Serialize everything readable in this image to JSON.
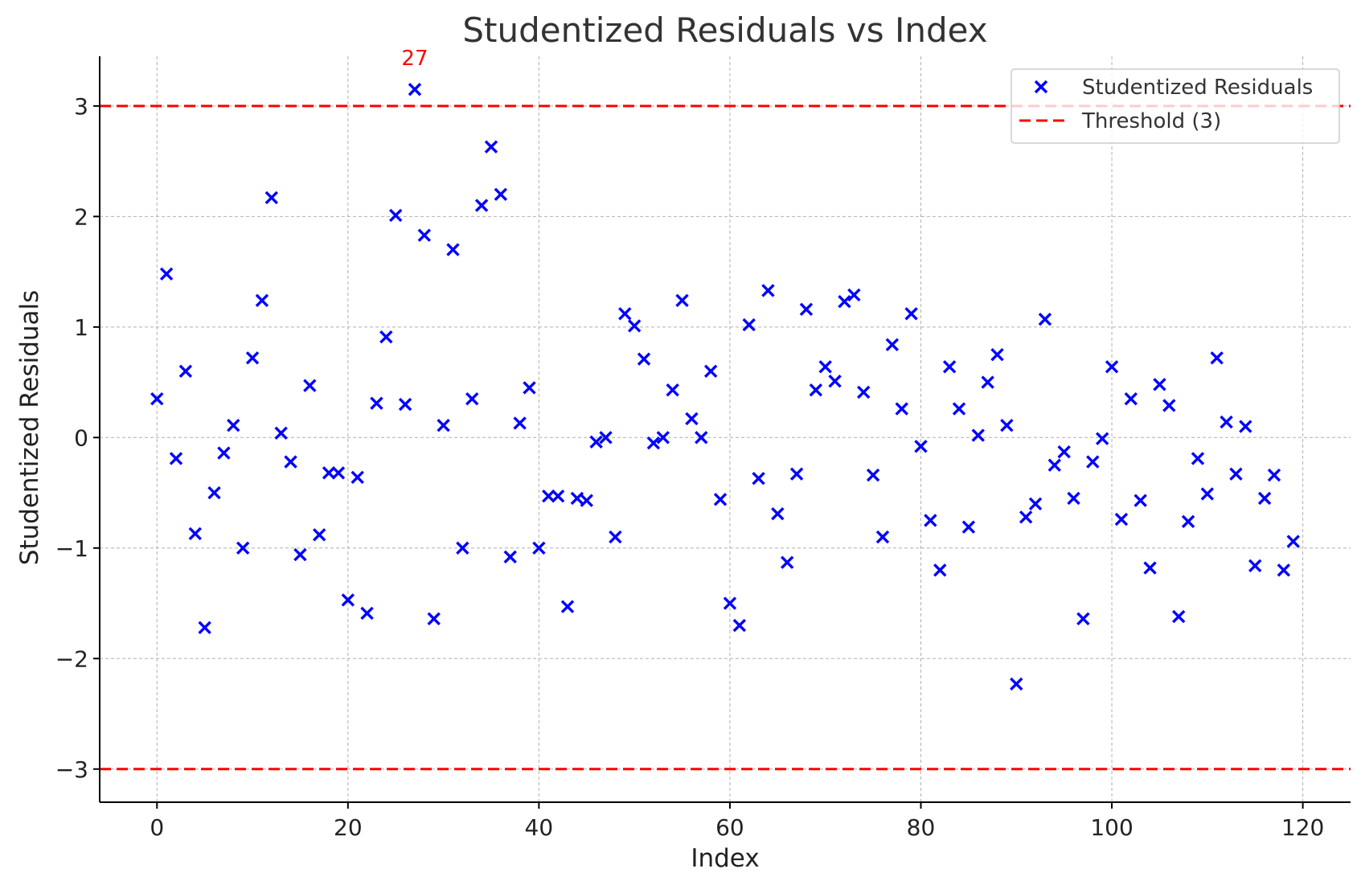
{
  "chart_data": {
    "type": "scatter",
    "title": "Studentized Residuals vs Index",
    "xlabel": "Index",
    "ylabel": "Studentized Residuals",
    "xlim": [
      -6,
      125
    ],
    "ylim": [
      -3.3,
      3.45
    ],
    "xticks": [
      0,
      20,
      40,
      60,
      80,
      100,
      120
    ],
    "yticks": [
      3,
      2,
      1,
      0,
      -1,
      -2,
      -3
    ],
    "ytick_labels": [
      "3",
      "2",
      "1",
      "0",
      "−1",
      "−2",
      "−3"
    ],
    "grid": true,
    "legend": {
      "position": "top-right",
      "entries": [
        "Studentized Residuals",
        "Threshold (3)"
      ]
    },
    "series": [
      {
        "name": "Studentized Residuals",
        "marker": "x",
        "color": "#0000ff",
        "x": [
          0,
          1,
          2,
          3,
          4,
          5,
          6,
          7,
          8,
          9,
          10,
          11,
          12,
          13,
          14,
          15,
          16,
          17,
          18,
          19,
          20,
          21,
          22,
          23,
          24,
          25,
          26,
          27,
          28,
          29,
          30,
          31,
          32,
          33,
          34,
          35,
          36,
          37,
          38,
          39,
          40,
          41,
          42,
          43,
          44,
          45,
          46,
          47,
          48,
          49,
          50,
          51,
          52,
          53,
          54,
          55,
          56,
          57,
          58,
          59,
          60,
          61,
          62,
          63,
          64,
          65,
          66,
          67,
          68,
          69,
          70,
          71,
          72,
          73,
          74,
          75,
          76,
          77,
          78,
          79,
          80,
          81,
          82,
          83,
          84,
          85,
          86,
          87,
          88,
          89,
          90,
          91,
          92,
          93,
          94,
          95,
          96,
          97,
          98,
          99,
          100,
          101,
          102,
          103,
          104,
          105,
          106,
          107,
          108,
          109,
          110,
          111,
          112,
          113,
          114,
          115,
          116,
          117,
          118,
          119
        ],
        "y": [
          0.35,
          1.48,
          -0.19,
          0.6,
          -0.87,
          -1.72,
          -0.5,
          -0.14,
          0.11,
          -1.0,
          0.72,
          1.24,
          2.17,
          0.04,
          -0.22,
          -1.06,
          0.47,
          -0.88,
          -0.32,
          -0.32,
          -1.47,
          -0.36,
          -1.59,
          0.31,
          0.91,
          2.01,
          0.3,
          3.15,
          1.83,
          -1.64,
          0.11,
          1.7,
          -1.0,
          0.35,
          2.1,
          2.63,
          2.2,
          -1.08,
          0.13,
          0.45,
          -1.0,
          -0.53,
          -0.53,
          -1.53,
          -0.55,
          -0.57,
          -0.04,
          0.0,
          -0.9,
          1.12,
          1.01,
          0.71,
          -0.05,
          0.0,
          0.43,
          1.24,
          0.17,
          0.0,
          0.6,
          -0.56,
          -1.5,
          -1.7,
          1.02,
          -0.37,
          1.33,
          -0.69,
          -1.13,
          -0.33,
          1.16,
          0.43,
          0.64,
          0.51,
          1.23,
          1.29,
          0.41,
          -0.34,
          -0.9,
          0.84,
          0.26,
          1.12,
          -0.08,
          -0.75,
          -1.2,
          0.64,
          0.26,
          -0.81,
          0.02,
          0.5,
          0.75,
          0.11,
          -2.23,
          -0.72,
          -0.6,
          1.07,
          -0.25,
          -0.13,
          -0.55,
          -1.64,
          -0.22,
          -0.01,
          0.64,
          -0.74,
          0.35,
          -0.57,
          -1.18,
          0.48,
          0.29,
          -1.62,
          -0.76,
          -0.19,
          -0.51,
          0.72,
          0.14,
          -0.33,
          0.1,
          -1.16,
          -0.55,
          -0.34,
          -1.2,
          -0.94
        ]
      },
      {
        "name": "Threshold (3)",
        "style": "dashed",
        "color": "#ff0000",
        "lines": [
          3,
          -3
        ]
      }
    ],
    "annotations": [
      {
        "text": "27",
        "x": 27,
        "y": 3.15,
        "color": "#ff0000"
      }
    ]
  }
}
